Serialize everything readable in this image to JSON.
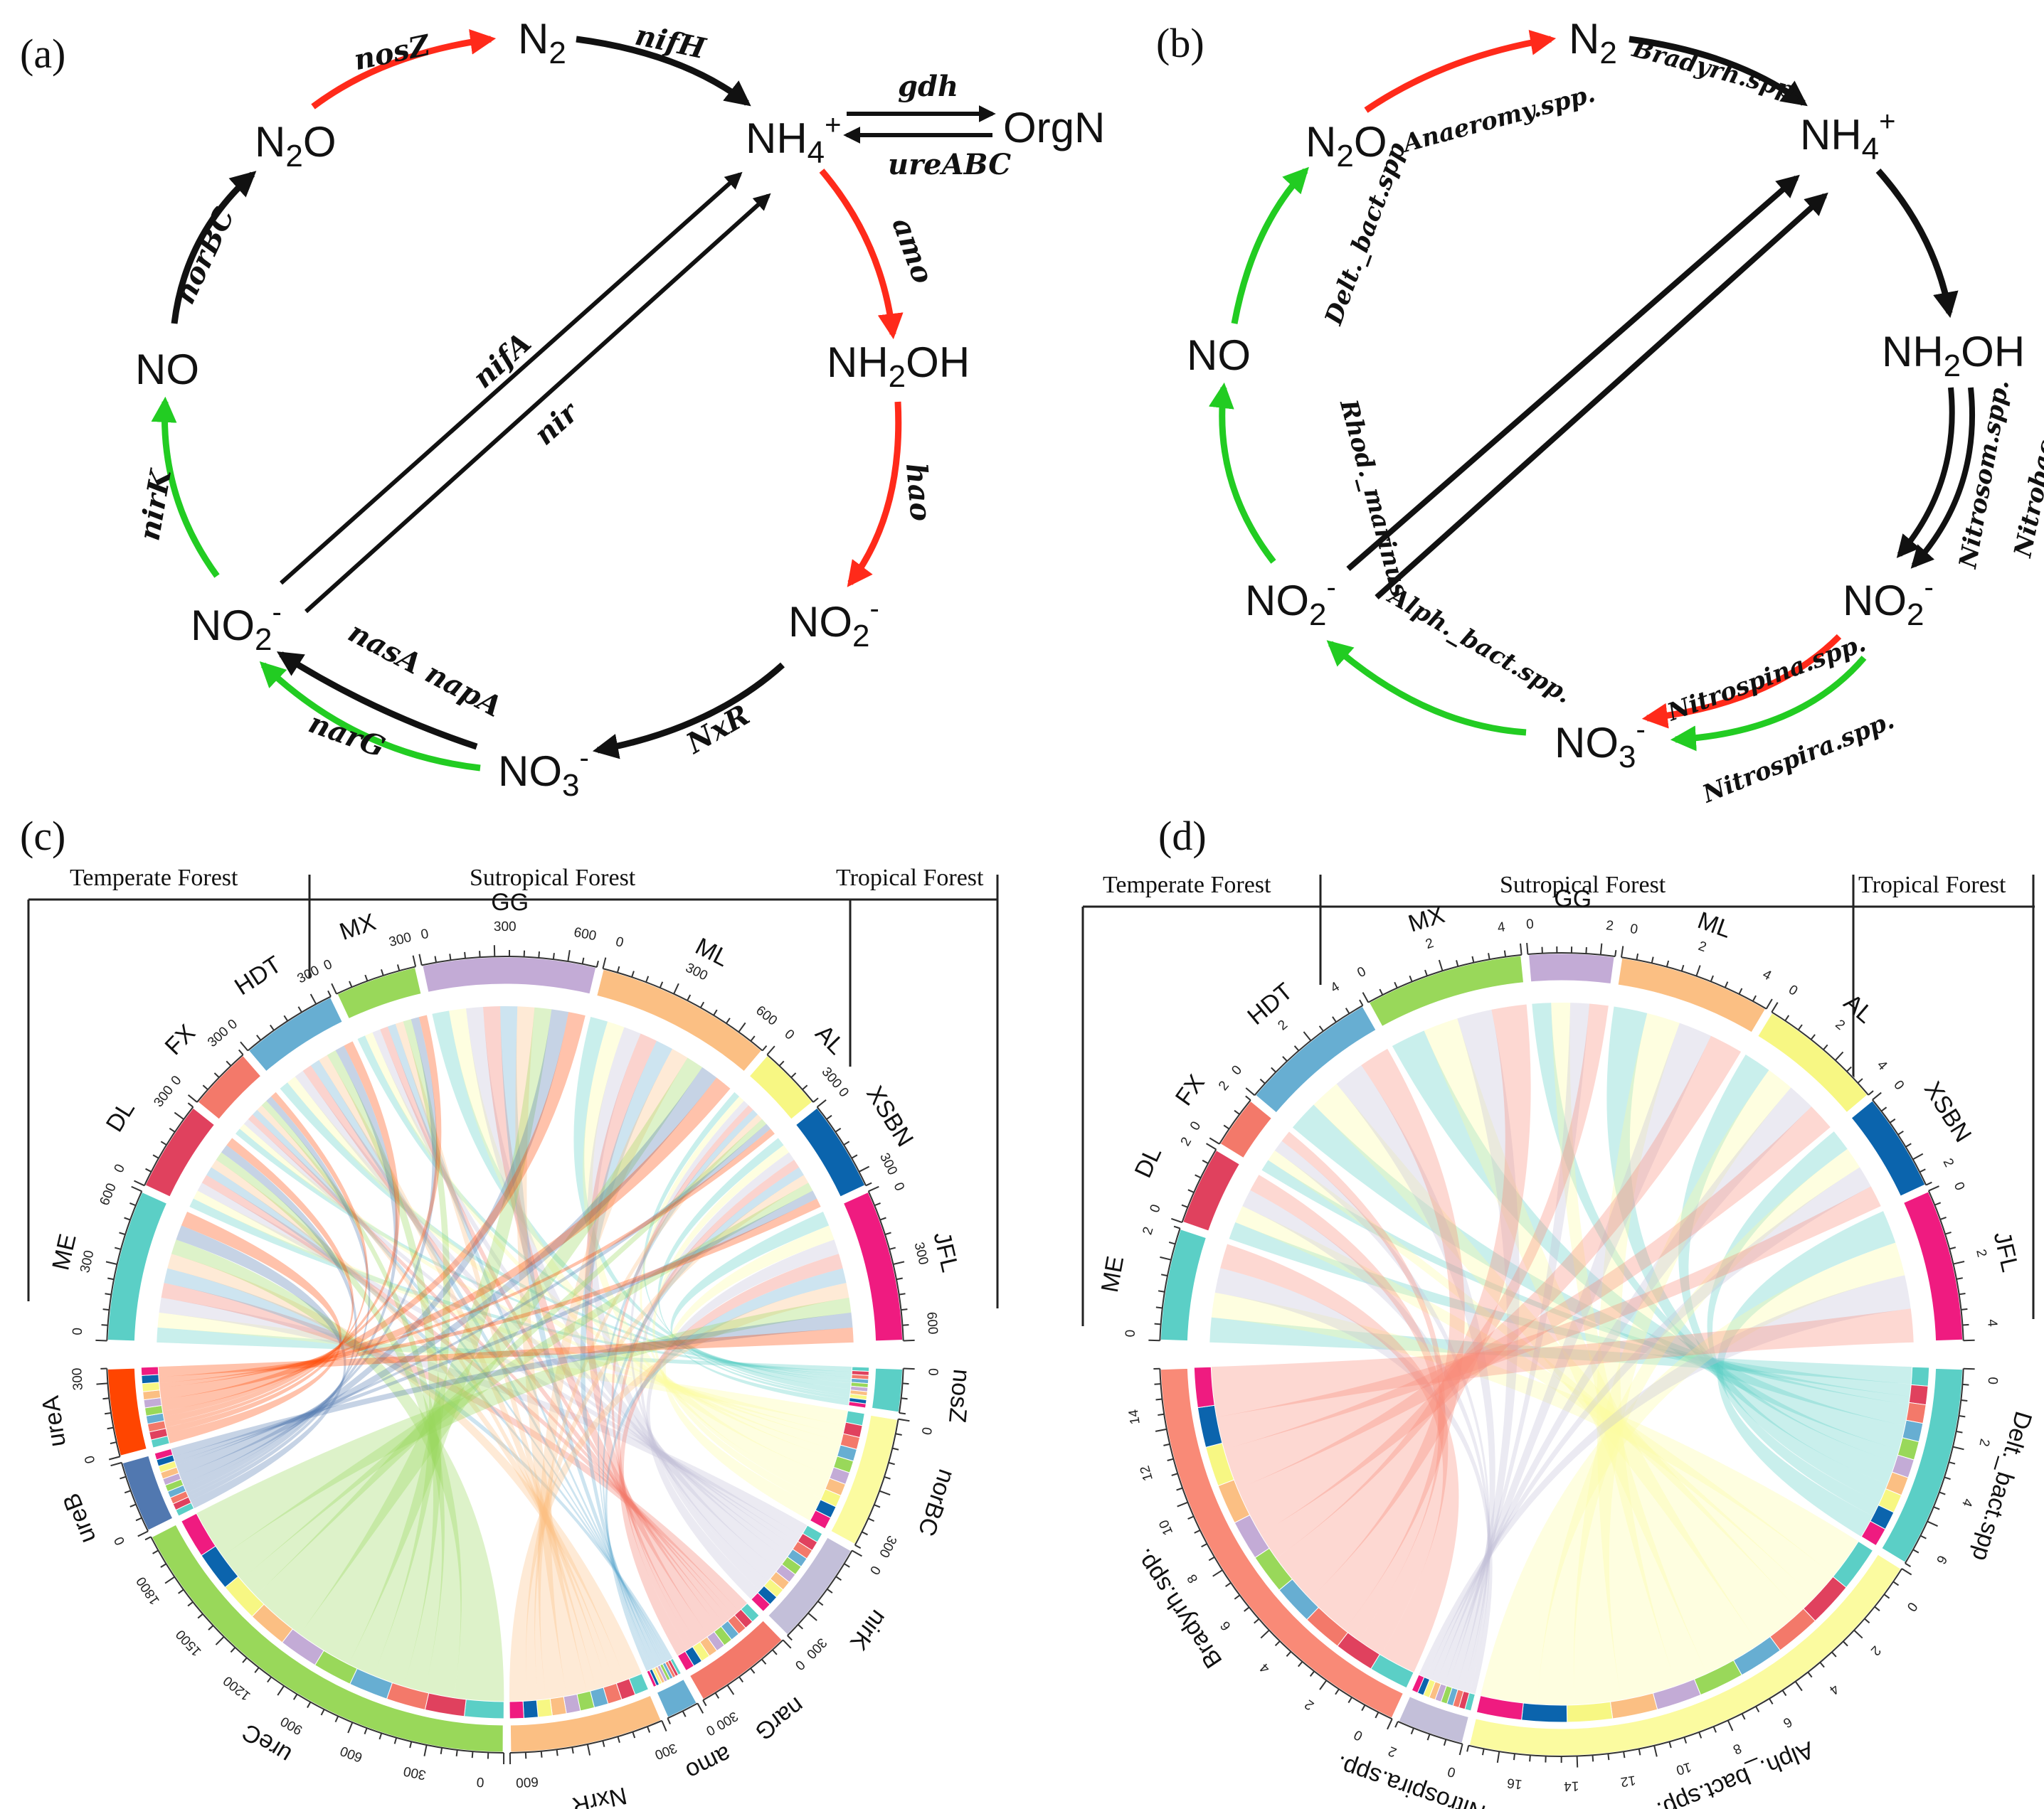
{
  "panels": {
    "a": "(a)",
    "b": "(b)",
    "c": "(c)",
    "d": "(d)"
  },
  "panel_a": {
    "species": {
      "n2": "N2",
      "nh4": "NH4+",
      "orgn": "Org N",
      "nh2oh": "NH2OH",
      "no2_right": "NO2-",
      "no3": "NO3-",
      "no2_left": "NO2-",
      "no": "NO",
      "n2o": "N2O"
    },
    "genes": {
      "nosZ": "nosZ",
      "nifH": "nifH",
      "gdh": "gdh",
      "ureABC": "ureABC",
      "amo": "amo",
      "hao": "hao",
      "NxR": "NxR",
      "nasA_napA": "nasA napA",
      "narG": "narG",
      "nirK": "nirK",
      "norBC": "norBC",
      "nifA": "nifA",
      "nir": "nir"
    }
  },
  "panel_b": {
    "species": {
      "n2": "N2",
      "nh4": "NH4+",
      "nh2oh": "NH2OH",
      "no2_right": "NO2-",
      "no3": "NO3-",
      "no2_left": "NO2-",
      "no": "NO",
      "n2o": "N2O"
    },
    "taxa": {
      "anaeromy": "Anaeromy.spp.",
      "bradyrh": "Bradyrh.spp.",
      "nitrosom": "Nitrosom.spp.",
      "nitrobac": "Nitrobac.spp.",
      "nitrospina": "Nitrospina.spp.",
      "nitrospira": "Nitrospira.spp.",
      "alph": "Alph._bact.spp.",
      "rhod": "Rhod._marinus",
      "delt": "Delt._bact.spp"
    }
  },
  "forests": {
    "temperate": "Temperate Forest",
    "subtropical": "Sutropical Forest",
    "tropical": "Tropical Forest"
  },
  "colors": {
    "red_arrow": "#ff2a1a",
    "green_arrow": "#22cc22",
    "black_arrow": "#111111"
  },
  "chord_c": {
    "sites": [
      {
        "name": "ME",
        "value": 700,
        "color": "#5bcfc6",
        "ticks": [
          "0",
          "300",
          "600"
        ]
      },
      {
        "name": "DL",
        "value": 420,
        "color": "#e0415e",
        "ticks": [
          "0",
          "300"
        ]
      },
      {
        "name": "FX",
        "value": 300,
        "color": "#f3796a",
        "ticks": [
          "0",
          "300"
        ]
      },
      {
        "name": "HDT",
        "value": 450,
        "color": "#67aed2",
        "ticks": [
          "0",
          "300"
        ]
      },
      {
        "name": "MX",
        "value": 380,
        "color": "#99d85a",
        "ticks": [
          "0",
          "300"
        ]
      },
      {
        "name": "GG",
        "value": 800,
        "color": "#c3abd6",
        "ticks": [
          "0",
          "300",
          "600"
        ]
      },
      {
        "name": "ML",
        "value": 820,
        "color": "#fbbf83",
        "ticks": [
          "0",
          "300",
          "600"
        ]
      },
      {
        "name": "AL",
        "value": 300,
        "color": "#f7f783",
        "ticks": [
          "0",
          "300"
        ]
      },
      {
        "name": "XSBN",
        "value": 420,
        "color": "#0b64ad",
        "ticks": [
          "0",
          "300"
        ]
      },
      {
        "name": "JFL",
        "value": 700,
        "color": "#ef1b80",
        "ticks": [
          "0",
          "300",
          "600"
        ]
      }
    ],
    "genes": [
      {
        "name": "nosZ",
        "value": 200,
        "color": "#5bcfc6",
        "ticks": [
          "0"
        ]
      },
      {
        "name": "norBC",
        "value": 600,
        "color": "#fbfba0",
        "ticks": [
          "0",
          "300"
        ]
      },
      {
        "name": "nirK",
        "value": 480,
        "color": "#c3bfd9",
        "ticks": [
          "0",
          "300"
        ]
      },
      {
        "name": "narG",
        "value": 450,
        "color": "#f3796a",
        "ticks": [
          "0",
          "300"
        ]
      },
      {
        "name": "amo",
        "value": 150,
        "color": "#67aed2",
        "ticks": [
          "0"
        ]
      },
      {
        "name": "NxrR",
        "value": 700,
        "color": "#fbbf83",
        "ticks": [
          "300",
          "600"
        ]
      },
      {
        "name": "ureC",
        "value": 1950,
        "color": "#99d85a",
        "ticks": [
          "0",
          "300",
          "600",
          "900",
          "1200",
          "1500",
          "1800"
        ]
      },
      {
        "name": "ureB",
        "value": 330,
        "color": "#5178b0",
        "ticks": [
          "0"
        ]
      },
      {
        "name": "ureA",
        "value": 400,
        "color": "#ff4500",
        "ticks": [
          "0",
          "300"
        ]
      }
    ]
  },
  "chord_d": {
    "sites": [
      {
        "name": "ME",
        "value": 3.4,
        "color": "#5bcfc6",
        "ticks": [
          "0",
          "2"
        ]
      },
      {
        "name": "DL",
        "value": 2.4,
        "color": "#e0415e",
        "ticks": [
          "0",
          "2"
        ]
      },
      {
        "name": "FX",
        "value": 1.6,
        "color": "#f3796a",
        "ticks": [
          "0",
          "2"
        ]
      },
      {
        "name": "HDT",
        "value": 4.2,
        "color": "#67aed2",
        "ticks": [
          "0",
          "2",
          "4"
        ]
      },
      {
        "name": "MX",
        "value": 4.8,
        "color": "#99d85a",
        "ticks": [
          "0",
          "2",
          "4"
        ]
      },
      {
        "name": "GG",
        "value": 2.6,
        "color": "#c3abd6",
        "ticks": [
          "0",
          "2"
        ]
      },
      {
        "name": "ML",
        "value": 4.6,
        "color": "#fbbf83",
        "ticks": [
          "0",
          "2",
          "4"
        ]
      },
      {
        "name": "AL",
        "value": 3.8,
        "color": "#f7f783",
        "ticks": [
          "0",
          "2",
          "4"
        ]
      },
      {
        "name": "XSBN",
        "value": 3.0,
        "color": "#0b64ad",
        "ticks": [
          "0",
          "2"
        ]
      },
      {
        "name": "JFL",
        "value": 4.6,
        "color": "#ef1b80",
        "ticks": [
          "0",
          "2",
          "4"
        ]
      }
    ],
    "taxa": [
      {
        "name": "Delt._bact.spp",
        "value": 7.2,
        "color": "#5bcfc6",
        "ticks": [
          "0",
          "2",
          "4",
          "6"
        ]
      },
      {
        "name": "Alph._bact.spp.",
        "value": 17.5,
        "color": "#fbfba0",
        "ticks": [
          "0",
          "2",
          "4",
          "6",
          "8",
          "10",
          "12",
          "14",
          "16"
        ]
      },
      {
        "name": "Nitrospira.spp.",
        "value": 2.4,
        "color": "#c3bfd9",
        "ticks": [
          "0",
          "2"
        ]
      },
      {
        "name": "Bradyrh.spp.",
        "value": 15.5,
        "color": "#f98a77",
        "ticks": [
          "0",
          "2",
          "4",
          "6",
          "8",
          "10",
          "12",
          "14"
        ]
      }
    ]
  }
}
